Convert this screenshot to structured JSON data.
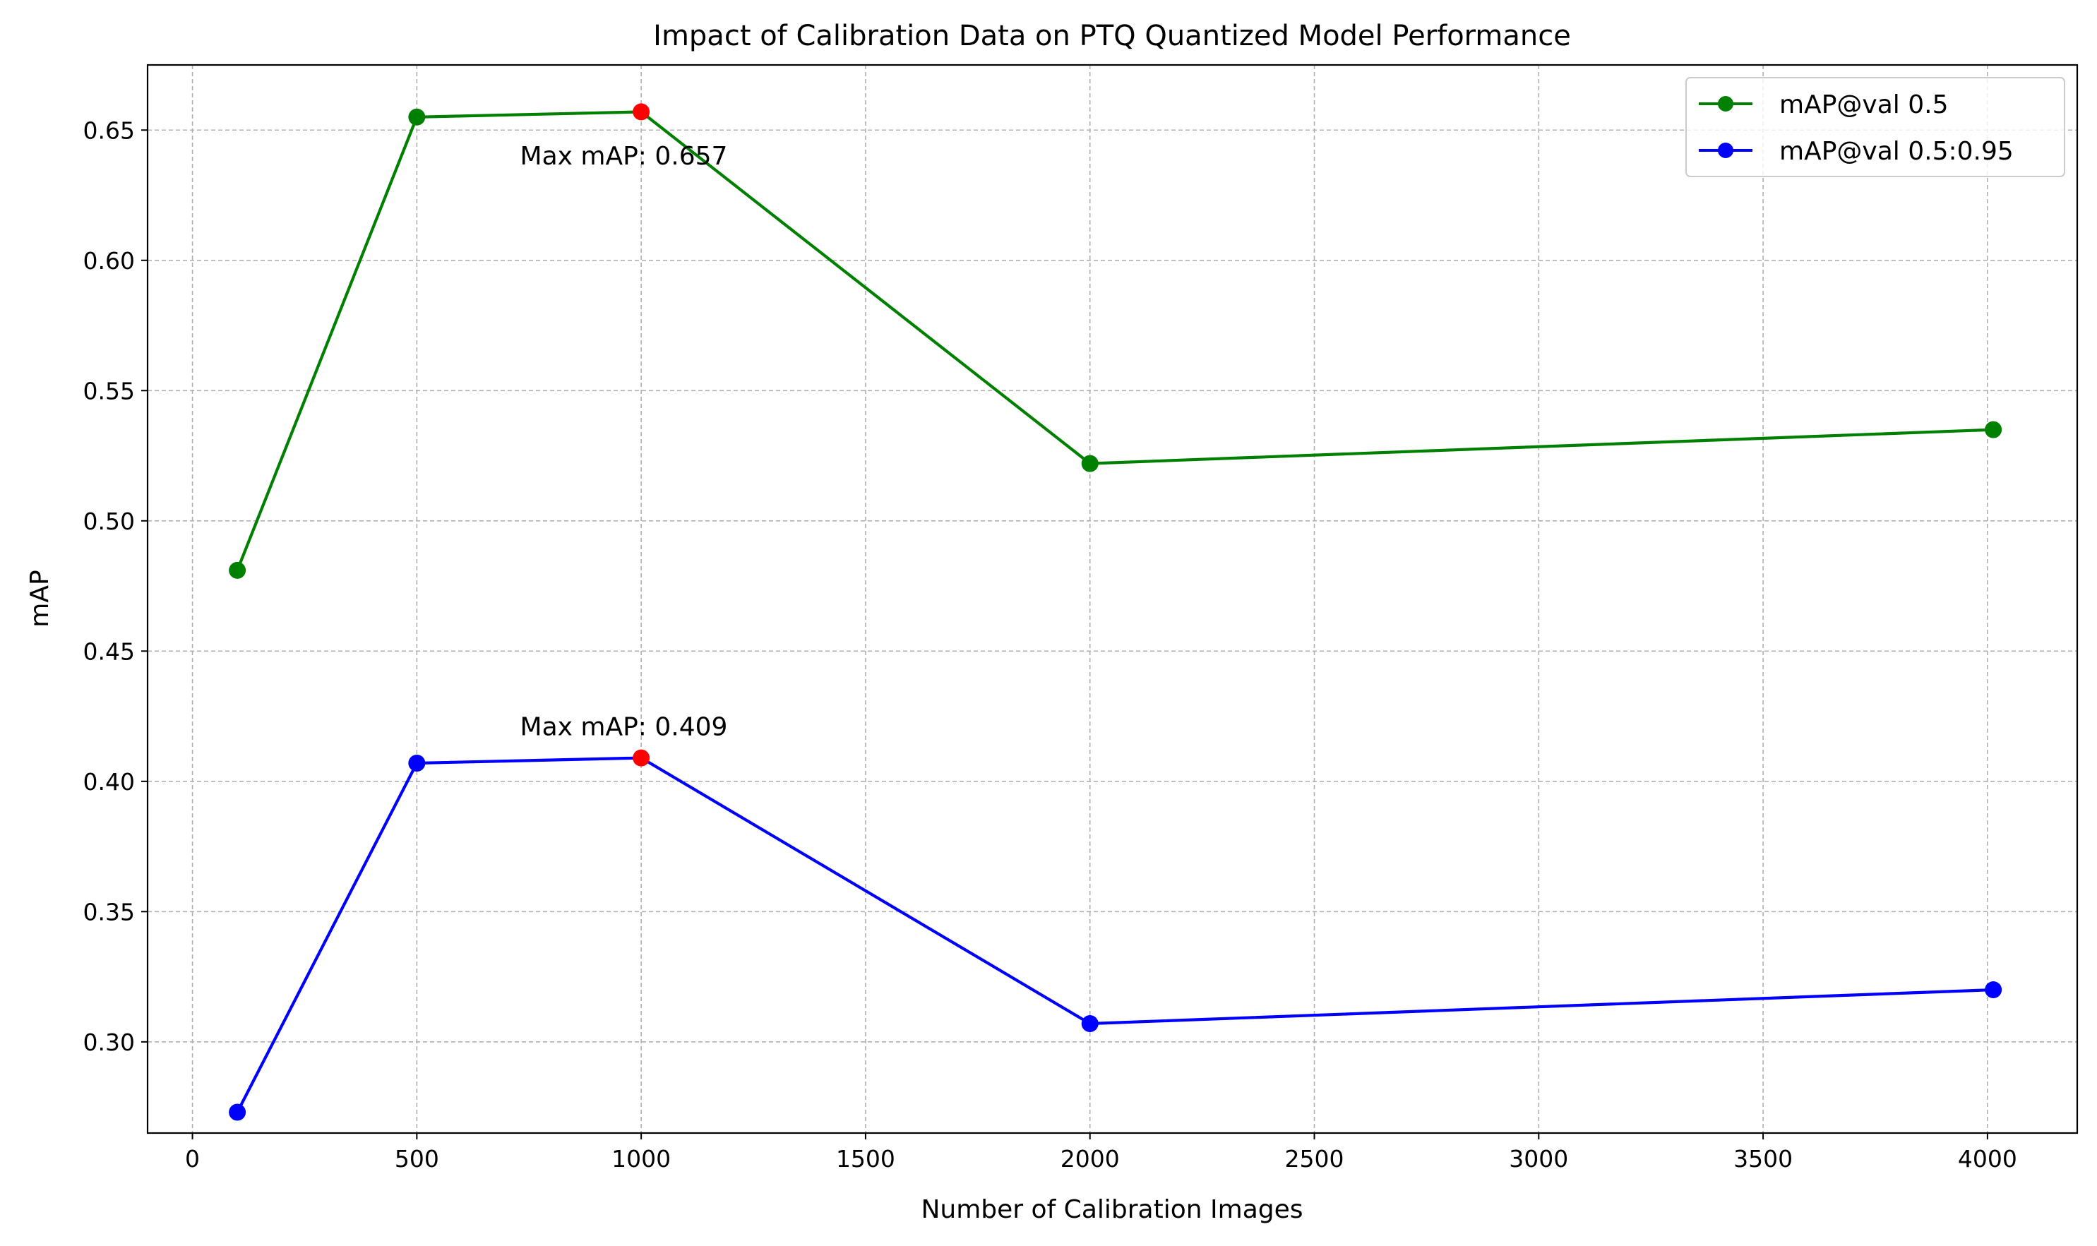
{
  "chart_data": {
    "type": "line",
    "title": "Impact of Calibration Data on PTQ Quantized Model Performance",
    "xlabel": "Number of Calibration Images",
    "ylabel": "mAP",
    "xlim": [
      -100,
      4200
    ],
    "ylim": [
      0.265,
      0.675
    ],
    "x_ticks": [
      0,
      500,
      1000,
      1500,
      2000,
      2500,
      3000,
      3500,
      4000
    ],
    "y_ticks": [
      0.3,
      0.35,
      0.4,
      0.45,
      0.5,
      0.55,
      0.6,
      0.65
    ],
    "x_tick_labels": [
      "0",
      "500",
      "1000",
      "1500",
      "2000",
      "2500",
      "3000",
      "3500",
      "4000"
    ],
    "y_tick_labels": [
      "0.30",
      "0.35",
      "0.40",
      "0.45",
      "0.50",
      "0.55",
      "0.60",
      "0.65"
    ],
    "grid": true,
    "legend_position": "top-right",
    "x": [
      100,
      500,
      1000,
      2000,
      4013
    ],
    "series": [
      {
        "name": "mAP@val 0.5",
        "color": "#008000",
        "values": [
          0.481,
          0.655,
          0.657,
          0.522,
          0.535
        ],
        "max_index": 2
      },
      {
        "name": "mAP@val 0.5:0.95",
        "color": "#0000ff",
        "values": [
          0.273,
          0.407,
          0.409,
          0.307,
          0.32
        ],
        "max_index": 2
      }
    ],
    "highlight_color": "#ff0000",
    "annotations": [
      {
        "text": "Max mAP: 0.657",
        "x": 730,
        "y": 0.64
      },
      {
        "text": "Max mAP: 0.409",
        "x": 730,
        "y": 0.421
      }
    ]
  }
}
